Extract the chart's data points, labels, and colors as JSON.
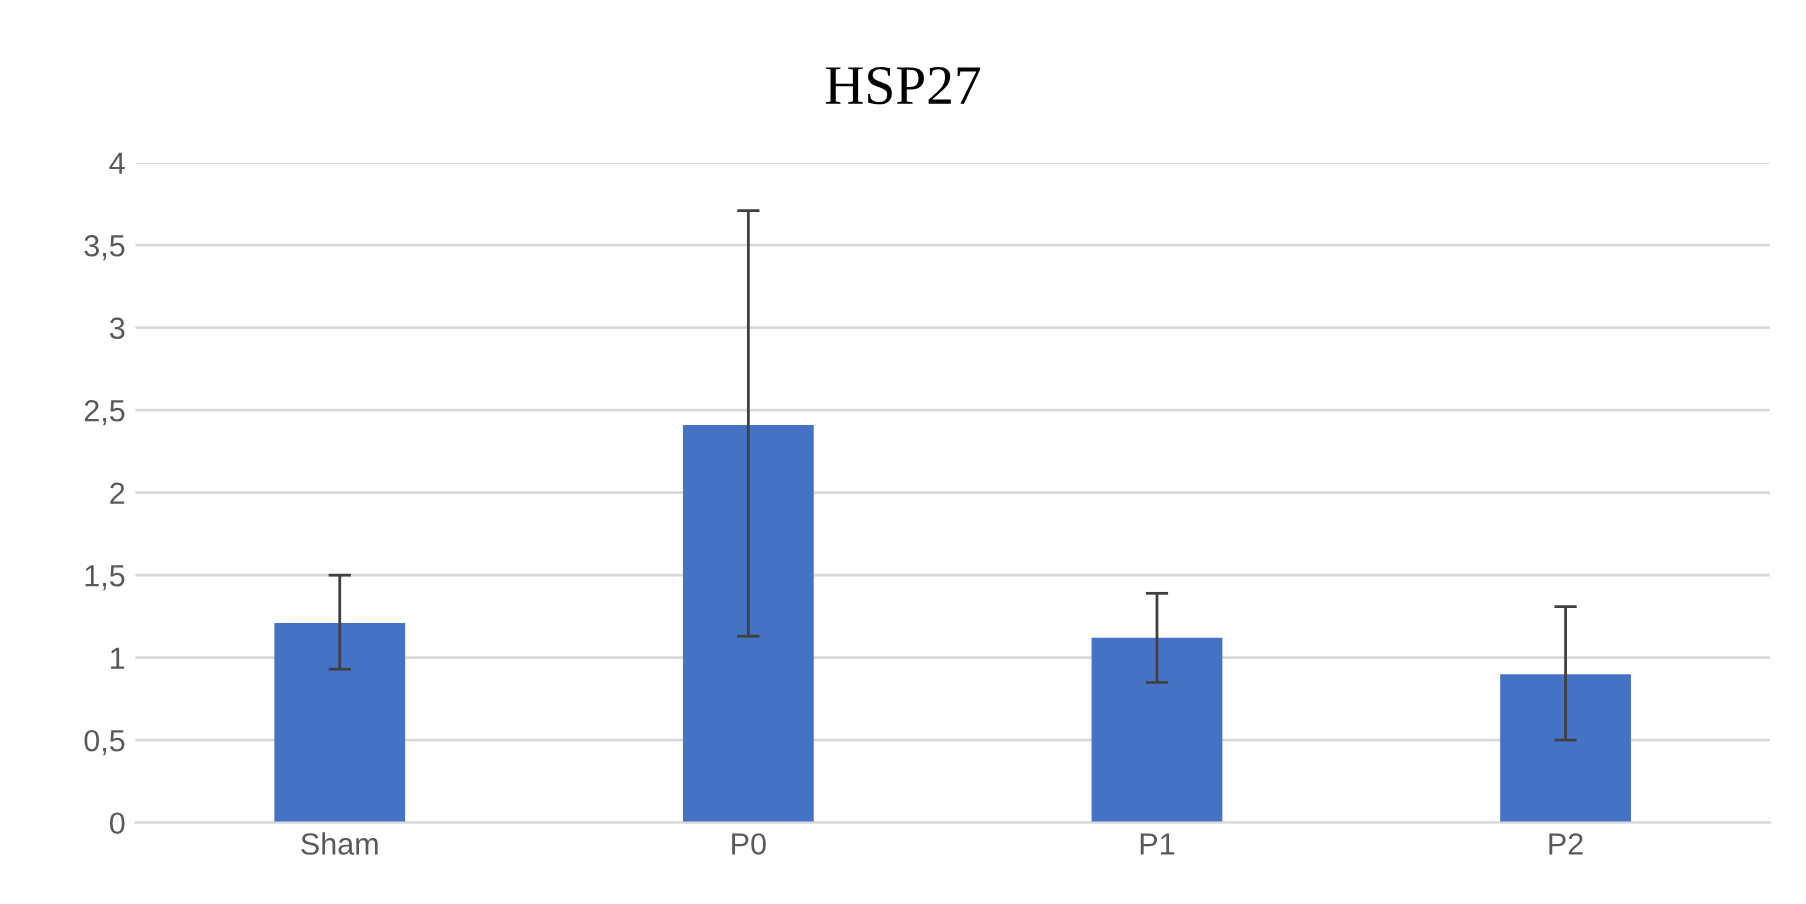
{
  "chart_data": {
    "type": "bar",
    "title": "HSP27",
    "categories": [
      "Sham",
      "P0",
      "P1",
      "P2"
    ],
    "values": [
      1.21,
      2.41,
      1.12,
      0.9
    ],
    "errors": [
      [
        0.93,
        1.5
      ],
      [
        1.13,
        3.71
      ],
      [
        0.85,
        1.39
      ],
      [
        0.5,
        1.31
      ]
    ],
    "color": "#4472c4",
    "ylim": [
      0,
      4
    ],
    "yticks": [
      0,
      {
        "value": 0.5,
        "label": "0,5"
      },
      1,
      {
        "value": 1.5,
        "label": "1,5"
      },
      2,
      {
        "value": 2.5,
        "label": "2,5"
      },
      3,
      {
        "value": 3.5,
        "label": "3,5"
      },
      4
    ],
    "grid": "y",
    "legend": false
  }
}
